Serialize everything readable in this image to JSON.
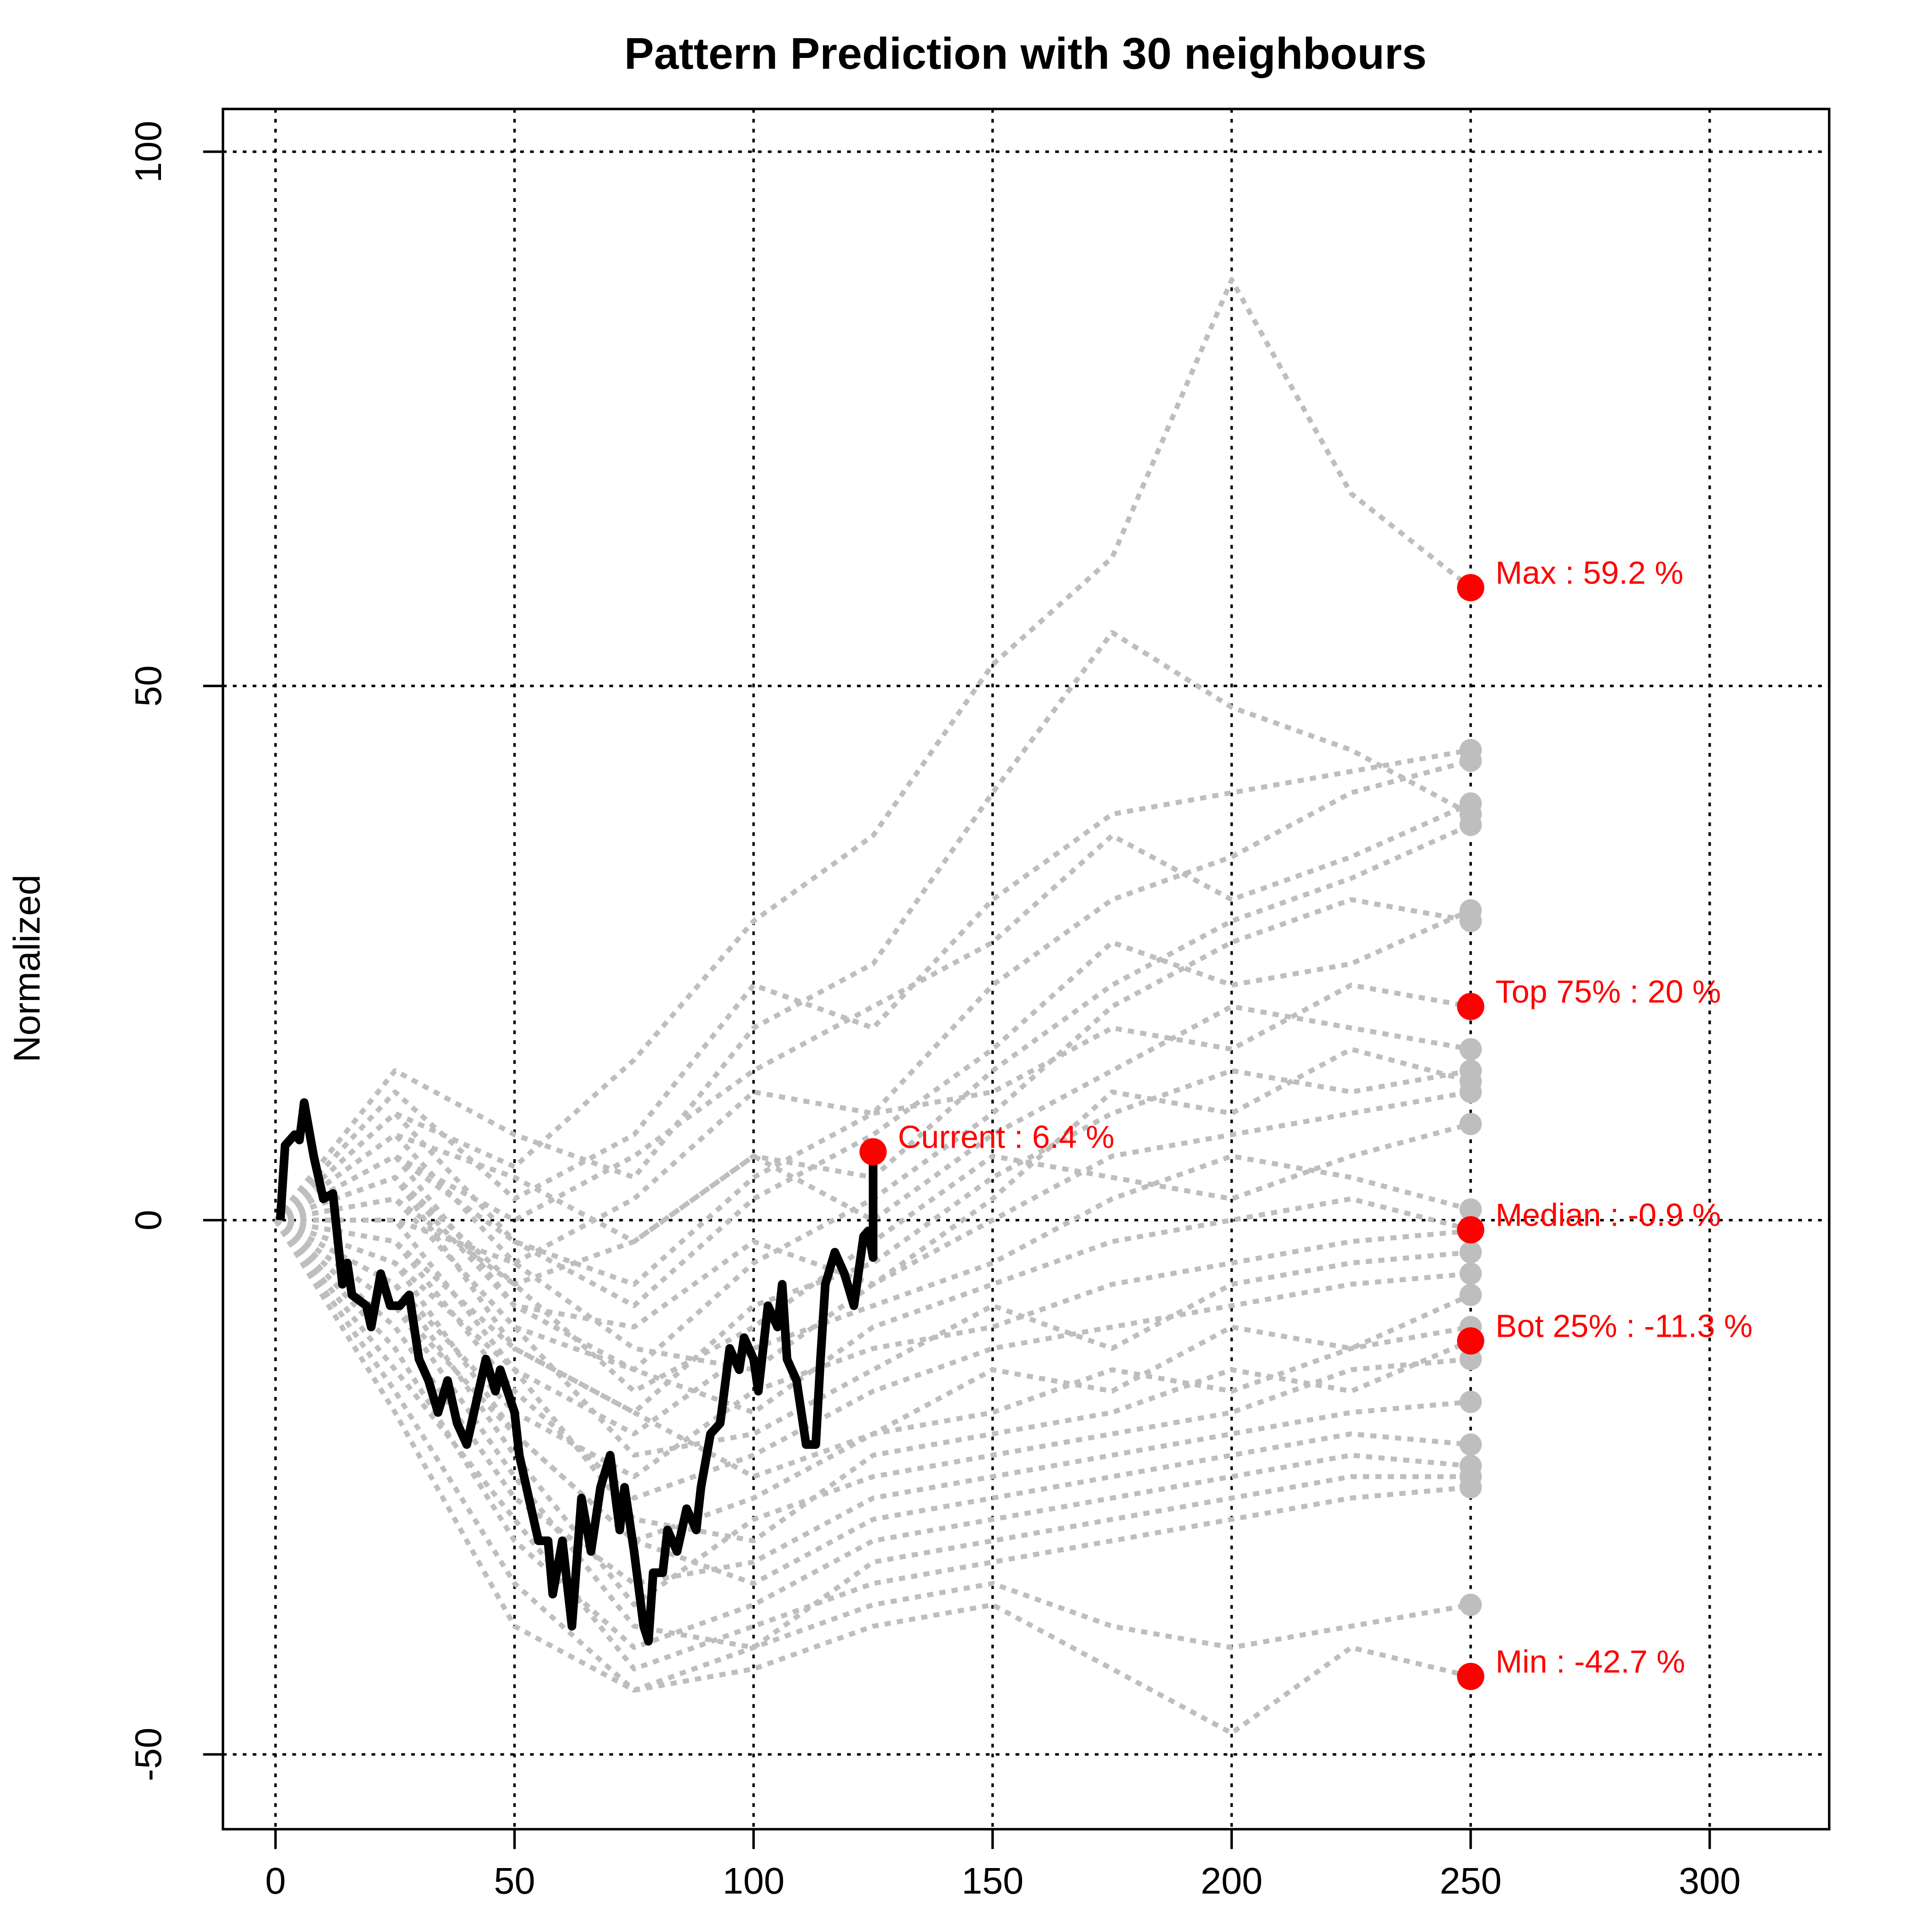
{
  "chart_data": {
    "type": "line",
    "title": "Pattern Prediction with 30 neighbours",
    "ylabel": "Normalized",
    "xlim": [
      -11,
      325
    ],
    "ylim": [
      -57,
      104
    ],
    "xticks": [
      0,
      50,
      100,
      150,
      200,
      250,
      300
    ],
    "yticks": [
      -50,
      0,
      50,
      100
    ],
    "grid": true,
    "neighbours": {
      "color": "#bebebe",
      "x": [
        0,
        25,
        50,
        75,
        100,
        125,
        150,
        175,
        200,
        225,
        250
      ],
      "series": [
        [
          0,
          10,
          5,
          15,
          28,
          36,
          52,
          62,
          88,
          68,
          59.2
        ],
        [
          0,
          12,
          2,
          8,
          22,
          18,
          30,
          38,
          40,
          42,
          44
        ],
        [
          0,
          8,
          -4,
          2,
          12,
          10,
          22,
          30,
          34,
          40,
          43
        ],
        [
          0,
          6,
          0,
          6,
          14,
          20,
          26,
          36,
          30,
          34,
          39
        ],
        [
          0,
          14,
          8,
          4,
          18,
          24,
          40,
          55,
          48,
          44,
          38
        ],
        [
          0,
          4,
          -6,
          -2,
          6,
          4,
          14,
          22,
          28,
          32,
          37
        ],
        [
          0,
          10,
          -2,
          -8,
          2,
          8,
          16,
          26,
          22,
          24,
          29
        ],
        [
          0,
          2,
          -10,
          -14,
          -4,
          2,
          10,
          20,
          26,
          30,
          28
        ],
        [
          0,
          6,
          -2,
          -6,
          4,
          10,
          12,
          18,
          16,
          22,
          20
        ],
        [
          0,
          8,
          4,
          -2,
          6,
          0,
          8,
          14,
          20,
          18,
          16
        ],
        [
          0,
          -2,
          -12,
          -18,
          -8,
          -4,
          4,
          10,
          14,
          12,
          14
        ],
        [
          0,
          4,
          -8,
          -10,
          -2,
          -6,
          2,
          12,
          10,
          16,
          13
        ],
        [
          0,
          0,
          -4,
          -12,
          -14,
          -6,
          0,
          6,
          8,
          10,
          12
        ],
        [
          0,
          2,
          -6,
          -16,
          -10,
          -2,
          6,
          4,
          2,
          6,
          9
        ],
        [
          0,
          -4,
          -14,
          -20,
          -12,
          -8,
          -4,
          2,
          6,
          4,
          1
        ],
        [
          0,
          6,
          -8,
          -14,
          -18,
          -10,
          -6,
          -2,
          0,
          2,
          -0.9
        ],
        [
          0,
          -6,
          -18,
          -24,
          -16,
          -12,
          -10,
          -6,
          -4,
          -2,
          -1
        ],
        [
          0,
          2,
          -10,
          -22,
          -20,
          -14,
          -8,
          -12,
          -6,
          -4,
          -3
        ],
        [
          0,
          -2,
          -16,
          -26,
          -22,
          -16,
          -12,
          -10,
          -8,
          -6,
          -5
        ],
        [
          0,
          4,
          -12,
          -18,
          -24,
          -20,
          -14,
          -16,
          -10,
          -12,
          -7
        ],
        [
          0,
          -8,
          -20,
          -30,
          -26,
          -20,
          -18,
          -14,
          -16,
          -12,
          -10
        ],
        [
          0,
          0,
          -14,
          -28,
          -30,
          -22,
          -20,
          -18,
          -14,
          -16,
          -11.3
        ],
        [
          0,
          -6,
          -22,
          -36,
          -28,
          -24,
          -22,
          -20,
          -18,
          -14,
          -13
        ],
        [
          0,
          -10,
          -26,
          -34,
          -32,
          -26,
          -24,
          -22,
          -20,
          -18,
          -17
        ],
        [
          0,
          -4,
          -20,
          -30,
          -34,
          -28,
          -26,
          -24,
          -22,
          -20,
          -21
        ],
        [
          0,
          -12,
          -30,
          -40,
          -36,
          -30,
          -28,
          -26,
          -24,
          -22,
          -23
        ],
        [
          0,
          -8,
          -24,
          -38,
          -40,
          -32,
          -30,
          -28,
          -26,
          -24,
          -24
        ],
        [
          0,
          -14,
          -28,
          -42,
          -38,
          -34,
          -32,
          -30,
          -28,
          -26,
          -25
        ],
        [
          0,
          -16,
          -34,
          -44,
          -40,
          -36,
          -34,
          -38,
          -40,
          -38,
          -36
        ],
        [
          0,
          -18,
          -38,
          -44,
          -42,
          -38,
          -36,
          -42,
          -48,
          -40,
          -42.7
        ]
      ]
    },
    "current": {
      "color": "#000000",
      "x": [
        1,
        2,
        4,
        5,
        6,
        8,
        10,
        12,
        14,
        15,
        16,
        19,
        20,
        22,
        24,
        26,
        28,
        30,
        32,
        34,
        36,
        38,
        40,
        42,
        44,
        46,
        47,
        50,
        51,
        53,
        55,
        57,
        58,
        60,
        62,
        64,
        66,
        68,
        70,
        72,
        73,
        75,
        77,
        78,
        79,
        81,
        82,
        84,
        86,
        88,
        89,
        91,
        93,
        95,
        97,
        98,
        100,
        101,
        103,
        105,
        106,
        107,
        109,
        111,
        113,
        114,
        115,
        117,
        119,
        121,
        123,
        124,
        125,
        125
      ],
      "values": [
        0,
        7,
        8,
        7.5,
        11,
        6,
        2,
        2.5,
        -6,
        -4,
        -7,
        -8,
        -10,
        -5,
        -8,
        -8,
        -7,
        -13,
        -15,
        -18,
        -15,
        -19,
        -21,
        -17,
        -13,
        -16,
        -14,
        -18,
        -22,
        -26,
        -30,
        -30,
        -35,
        -30,
        -38,
        -26,
        -31,
        -25,
        -22,
        -29,
        -25,
        -31,
        -38,
        -39.4,
        -33,
        -33,
        -29,
        -31,
        -27,
        -29,
        -25,
        -20,
        -19,
        -12,
        -14,
        -11,
        -13,
        -16,
        -8,
        -10,
        -6,
        -13,
        -15,
        -21,
        -21,
        -13,
        -6,
        -3,
        -5,
        -8,
        -1.5,
        -1,
        -3.5,
        6.4
      ]
    },
    "points": {
      "color": "#ff0000",
      "items": [
        {
          "label": "Current : 6.4 %",
          "x": 125,
          "y": 6.4
        },
        {
          "label": "Max : 59.2 %",
          "x": 250,
          "y": 59.2
        },
        {
          "label": "Top 75% : 20 %",
          "x": 250,
          "y": 20
        },
        {
          "label": "Median : -0.9 %",
          "x": 250,
          "y": -0.9
        },
        {
          "label": "Bot 25% : -11.3 %",
          "x": 250,
          "y": -11.3
        },
        {
          "label": "Min : -42.7 %",
          "x": 250,
          "y": -42.7
        }
      ]
    }
  }
}
